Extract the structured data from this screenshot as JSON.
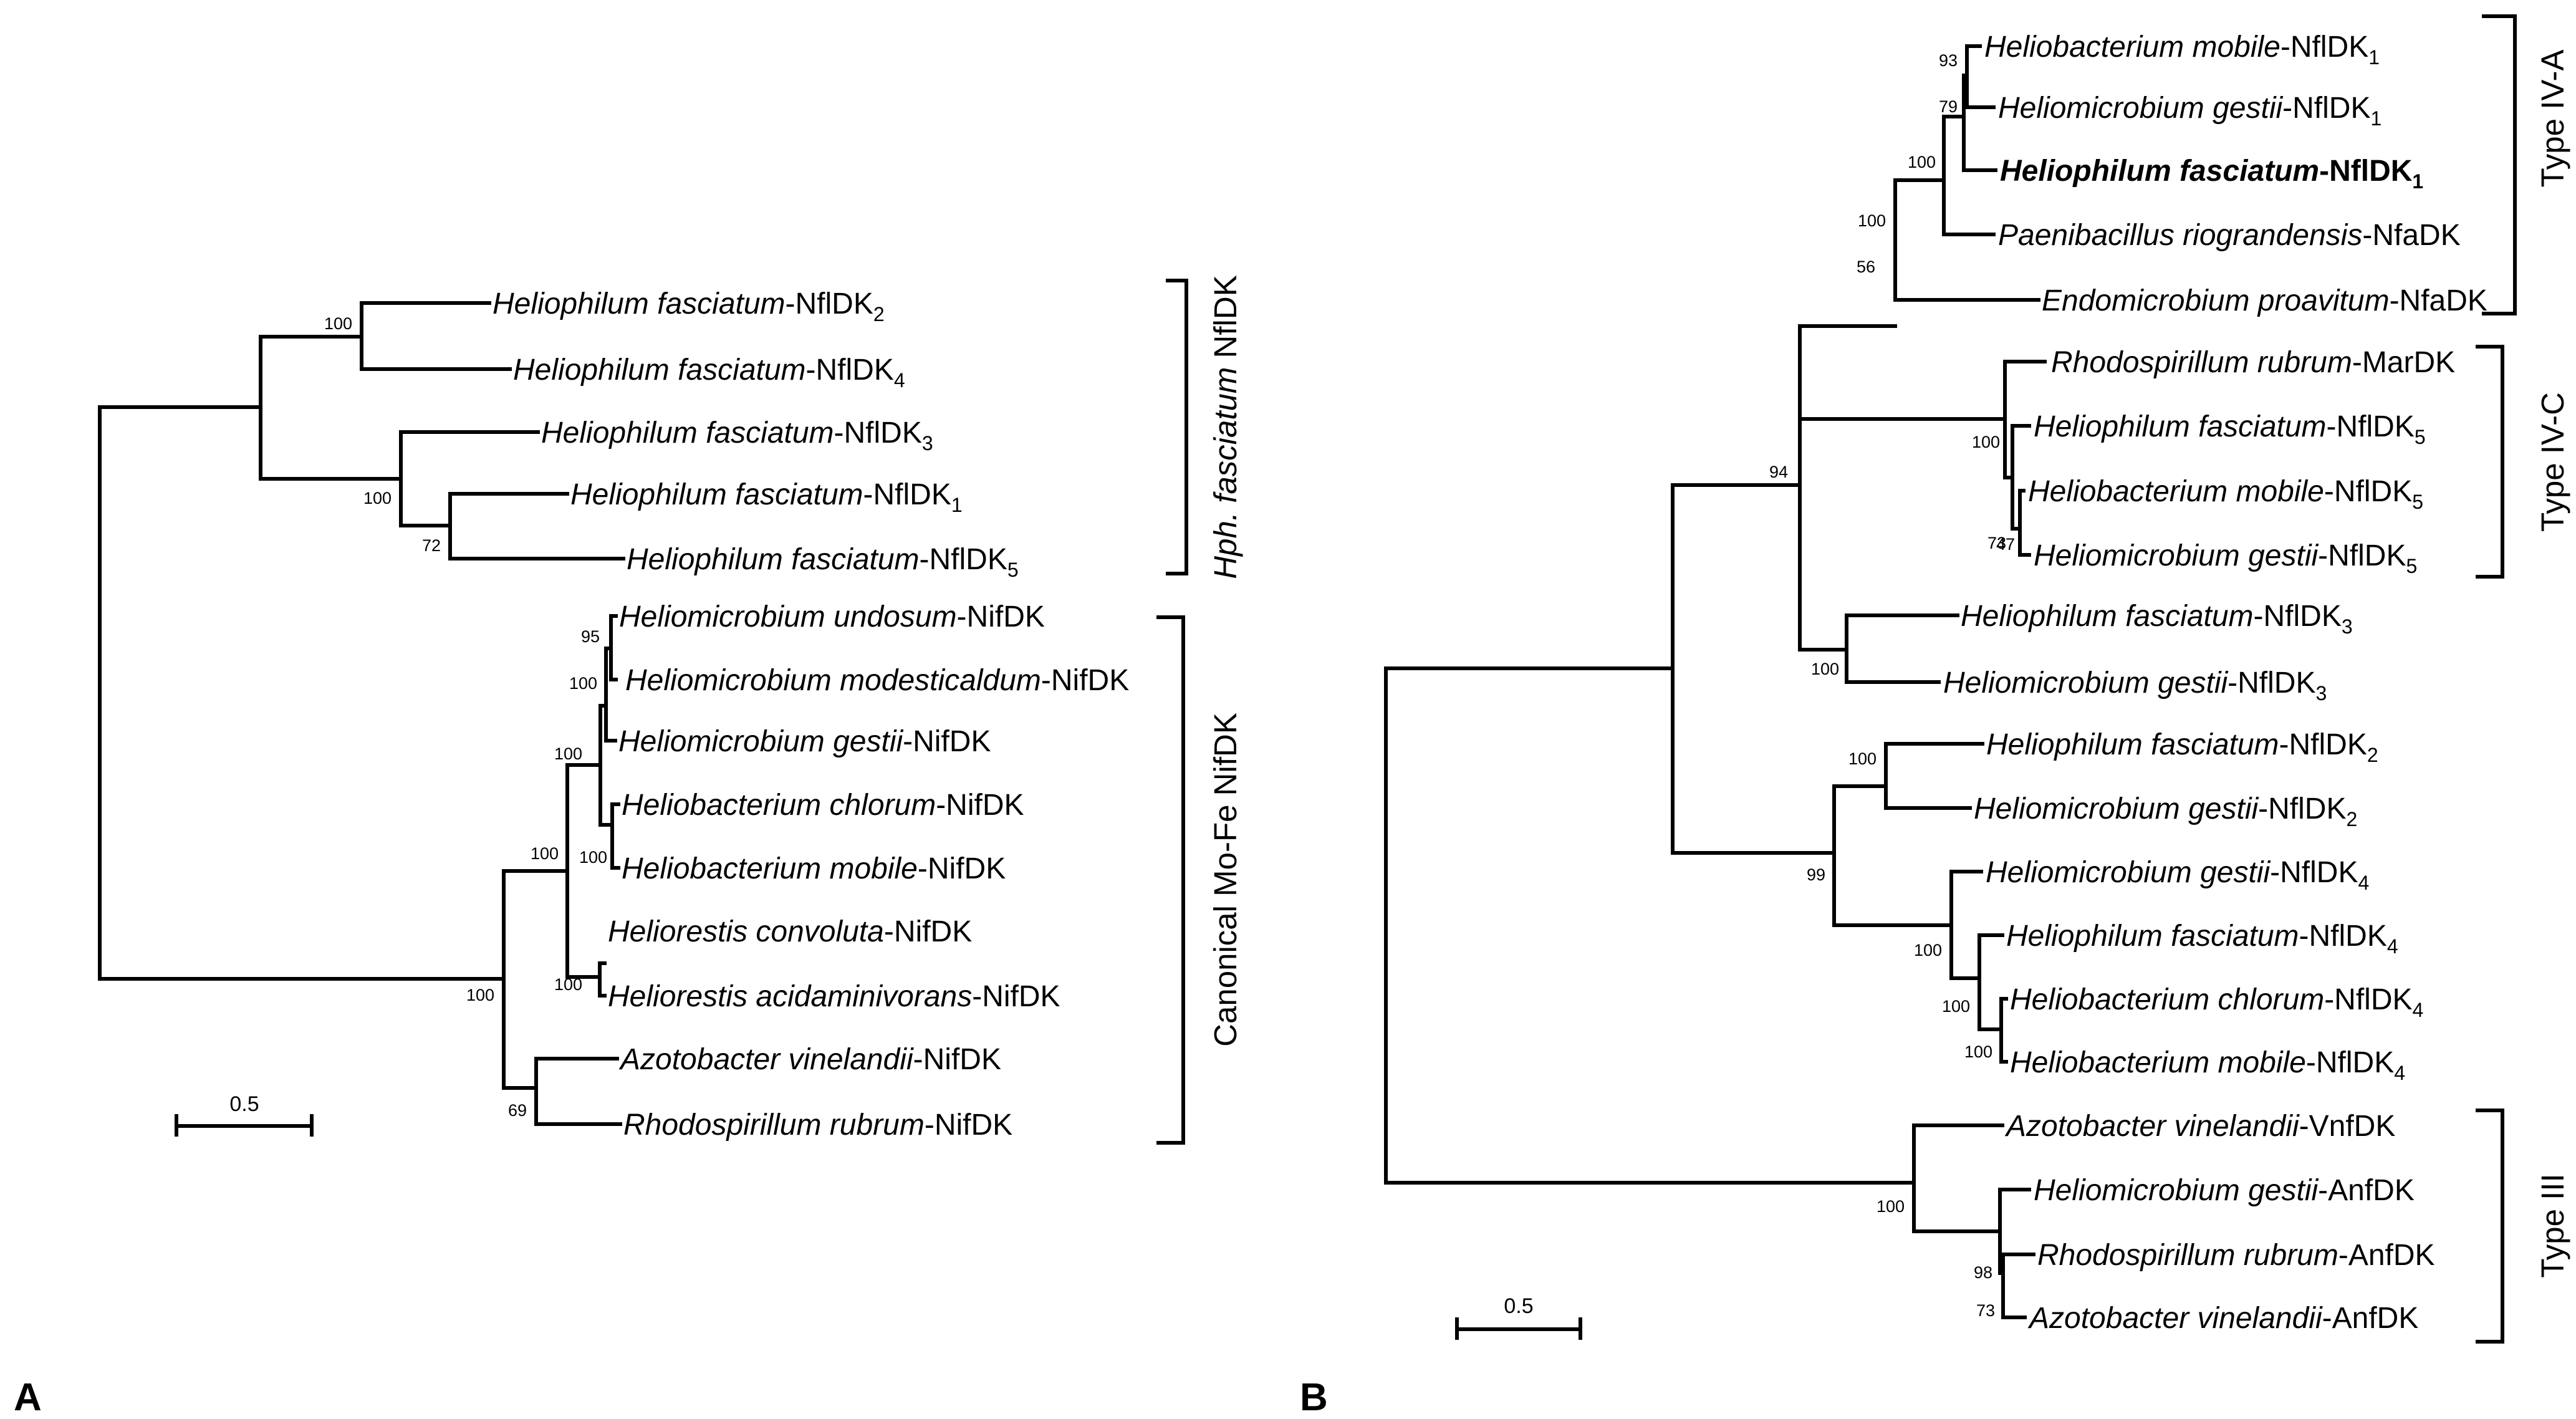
{
  "figure": {
    "panel_a_label": "A",
    "panel_b_label": "B",
    "scale_bar_label_a": "0.5",
    "scale_bar_label_b": "0.5"
  },
  "panel_a": {
    "groups": [
      {
        "pre": "Hph. fasciatum",
        "post": " NflDK"
      },
      {
        "pre": "",
        "post": "Canonical Mo-Fe NifDK"
      }
    ],
    "taxa": [
      {
        "genus": "Heliophilum fasciatum",
        "suffix": "-NflDK",
        "sub": "2"
      },
      {
        "genus": "Heliophilum fasciatum",
        "suffix": "-NflDK",
        "sub": "4"
      },
      {
        "genus": "Heliophilum fasciatum",
        "suffix": "-NflDK",
        "sub": "3"
      },
      {
        "genus": "Heliophilum fasciatum",
        "suffix": "-NflDK",
        "sub": "1"
      },
      {
        "genus": "Heliophilum fasciatum",
        "suffix": "-NflDK",
        "sub": "5"
      },
      {
        "genus": "Heliomicrobium undosum",
        "suffix": "-NifDK",
        "sub": ""
      },
      {
        "genus": "Heliomicrobium modesticaldum",
        "suffix": "-NifDK",
        "sub": ""
      },
      {
        "genus": "Heliomicrobium gestii",
        "suffix": "-NifDK",
        "sub": ""
      },
      {
        "genus": "Heliobacterium chlorum",
        "suffix": "-NifDK",
        "sub": ""
      },
      {
        "genus": "Heliobacterium mobile",
        "suffix": "-NifDK",
        "sub": ""
      },
      {
        "genus": "Heliorestis convoluta",
        "suffix": "-NifDK",
        "sub": ""
      },
      {
        "genus": "Heliorestis acidaminivorans",
        "suffix": "-NifDK",
        "sub": ""
      },
      {
        "genus": "Azotobacter vinelandii",
        "suffix": "-NifDK",
        "sub": ""
      },
      {
        "genus": "Rhodospirillum rubrum",
        "suffix": "-NifDK",
        "sub": ""
      }
    ],
    "bootstrap": [
      "100",
      "100",
      "72",
      "95",
      "100",
      "100",
      "100",
      "100",
      "100",
      "100",
      "69"
    ]
  },
  "panel_b": {
    "groups": [
      {
        "text": "Type IV-A"
      },
      {
        "text": "Type IV-C"
      },
      {
        "text": "Type III"
      }
    ],
    "taxa": [
      {
        "genus": "Heliobacterium mobile",
        "suffix": "-NflDK",
        "sub": "1",
        "bold": false
      },
      {
        "genus": "Heliomicrobium gestii",
        "suffix": "-NflDK",
        "sub": "1",
        "bold": false
      },
      {
        "genus": "Heliophilum fasciatum",
        "suffix": "-NflDK",
        "sub": "1",
        "bold": true
      },
      {
        "genus": "Paenibacillus riograndensis",
        "suffix": "-NfaDK",
        "sub": "",
        "bold": false
      },
      {
        "genus": "Endomicrobium proavitum",
        "suffix": "-NfaDK",
        "sub": "",
        "bold": false
      },
      {
        "genus": "Rhodospirillum rubrum",
        "suffix": "-MarDK",
        "sub": "",
        "bold": false
      },
      {
        "genus": "Heliophilum fasciatum",
        "suffix": "-NflDK",
        "sub": "5",
        "bold": false
      },
      {
        "genus": "Heliobacterium mobile",
        "suffix": "-NflDK",
        "sub": "5",
        "bold": false
      },
      {
        "genus": "Heliomicrobium gestii",
        "suffix": "-NflDK",
        "sub": "5",
        "bold": false
      },
      {
        "genus": "Heliophilum fasciatum",
        "suffix": "-NflDK",
        "sub": "3",
        "bold": false
      },
      {
        "genus": "Heliomicrobium gestii",
        "suffix": "-NflDK",
        "sub": "3",
        "bold": false
      },
      {
        "genus": "Heliophilum fasciatum",
        "suffix": "-NflDK",
        "sub": "2",
        "bold": false
      },
      {
        "genus": "Heliomicrobium gestii",
        "suffix": "-NflDK",
        "sub": "2",
        "bold": false
      },
      {
        "genus": "Heliomicrobium gestii",
        "suffix": "-NflDK",
        "sub": "4",
        "bold": false
      },
      {
        "genus": "Heliophilum fasciatum",
        "suffix": "-NflDK",
        "sub": "4",
        "bold": false
      },
      {
        "genus": "Heliobacterium chlorum",
        "suffix": "-NflDK",
        "sub": "4",
        "bold": false
      },
      {
        "genus": "Heliobacterium mobile",
        "suffix": "-NflDK",
        "sub": "4",
        "bold": false
      },
      {
        "genus": "Azotobacter vinelandii",
        "suffix": "-VnfDK",
        "sub": "",
        "bold": false
      },
      {
        "genus": "Heliomicrobium gestii",
        "suffix": "-AnfDK",
        "sub": "",
        "bold": false
      },
      {
        "genus": "Rhodospirillum rubrum",
        "suffix": "-AnfDK",
        "sub": "",
        "bold": false
      },
      {
        "genus": "Azotobacter vinelandii",
        "suffix": "-AnfDK",
        "sub": "",
        "bold": false
      }
    ],
    "bootstrap": [
      "93",
      "79",
      "100",
      "100",
      "56",
      "100",
      "73",
      "47",
      "94",
      "100",
      "100",
      "99",
      "100",
      "100",
      "100",
      "100",
      "98",
      "73"
    ]
  }
}
